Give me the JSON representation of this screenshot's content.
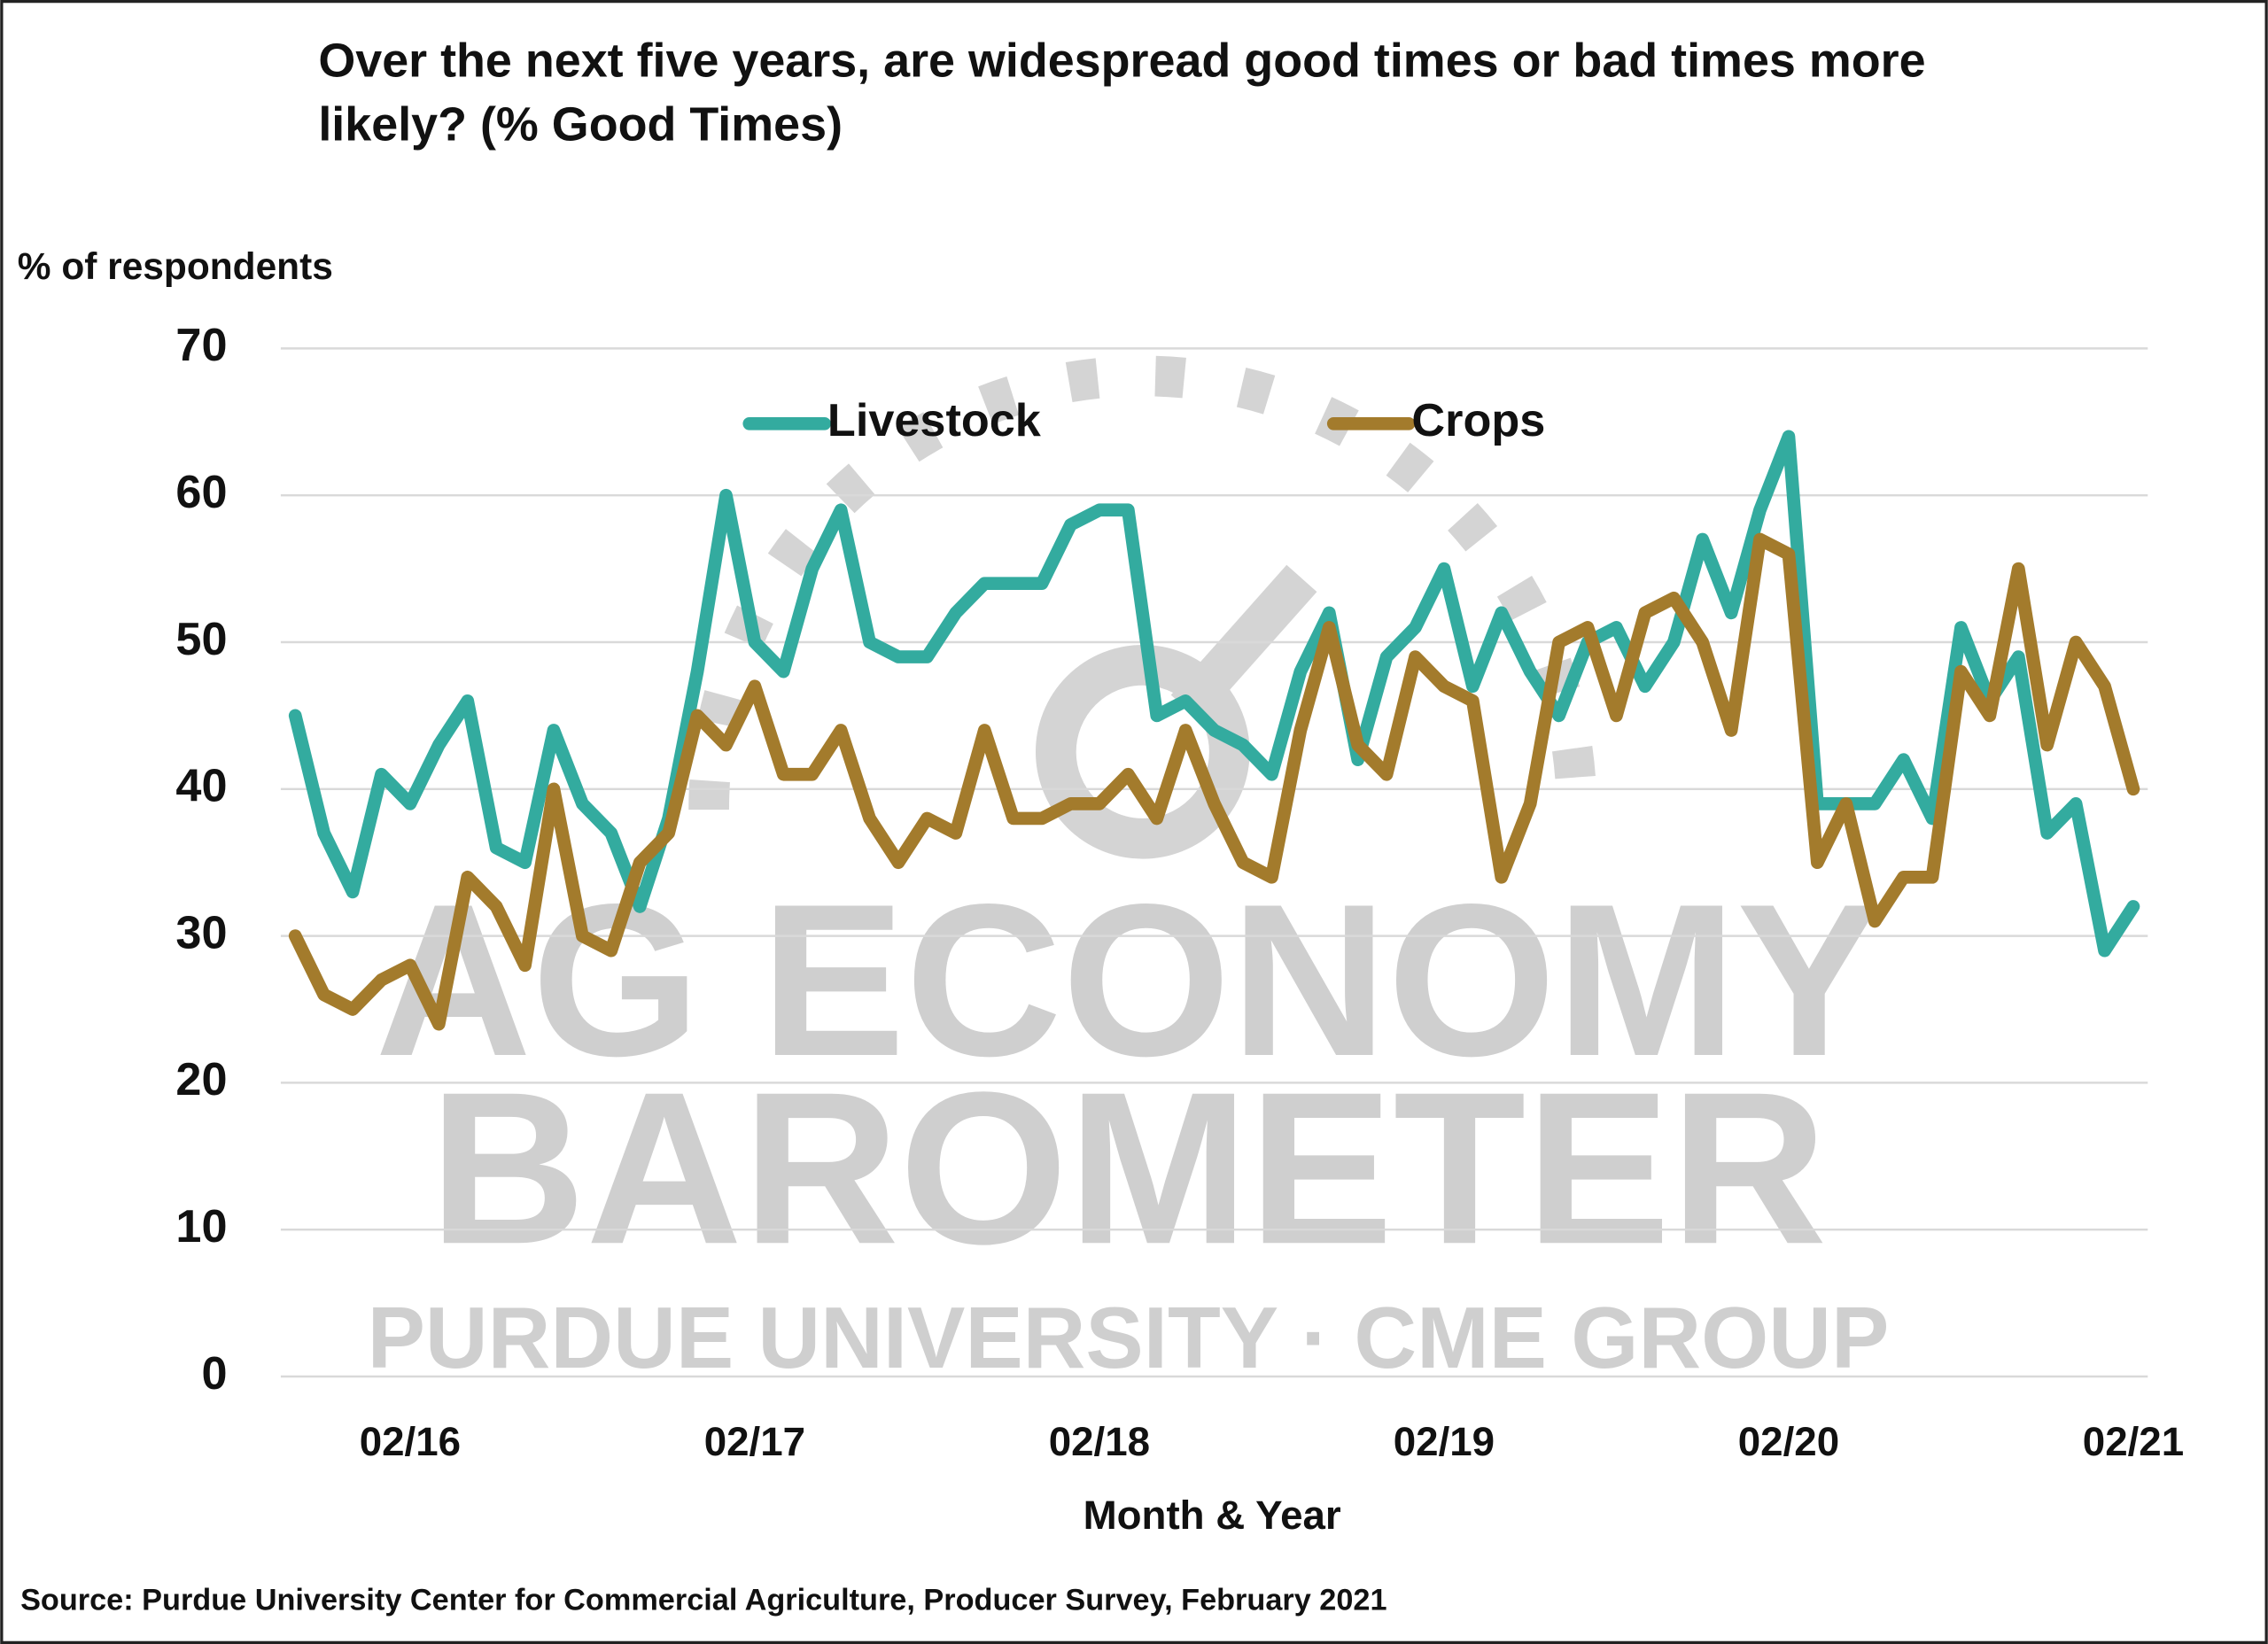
{
  "chart_data": {
    "type": "line",
    "title": "Over the next five years, are widespread good times or bad times more likely? (% Good Times)",
    "y_label": "% of respondents",
    "x_label": "Month & Year",
    "source": "Source: Purdue University Center for Commercial Agriculture, Producer Survey, February 2021",
    "watermark": [
      "AG ECONOMY",
      "BAROMETER",
      "PURDUE UNIVERSITY · CME GROUP"
    ],
    "categories": [
      null,
      null,
      null,
      null,
      "02/16",
      null,
      null,
      null,
      null,
      null,
      null,
      null,
      null,
      null,
      null,
      null,
      "02/17",
      null,
      null,
      null,
      null,
      null,
      null,
      null,
      null,
      null,
      null,
      null,
      "02/18",
      null,
      null,
      null,
      null,
      null,
      null,
      null,
      null,
      null,
      null,
      null,
      "02/19",
      null,
      null,
      null,
      null,
      null,
      null,
      null,
      null,
      null,
      null,
      null,
      "02/20",
      null,
      null,
      null,
      null,
      null,
      null,
      null,
      null,
      null,
      null,
      null,
      "02/21"
    ],
    "series": [
      {
        "name": "Livestock",
        "color": "#33ab9f",
        "values": [
          45,
          37,
          33,
          41,
          39,
          43,
          46,
          36,
          35,
          44,
          39,
          37,
          32,
          38,
          48,
          60,
          50,
          48,
          55,
          59,
          50,
          49,
          49,
          52,
          54,
          54,
          54,
          58,
          59,
          59,
          45,
          46,
          44,
          43,
          41,
          48,
          52,
          42,
          49,
          51,
          55,
          47,
          52,
          48,
          45,
          50,
          51,
          47,
          50,
          57,
          52,
          59,
          64,
          39,
          39,
          39,
          42,
          38,
          51,
          46,
          49,
          37,
          39,
          29,
          32
        ]
      },
      {
        "name": "Crops",
        "color": "#a37b2c",
        "values": [
          30,
          26,
          25,
          27,
          28,
          24,
          34,
          32,
          28,
          40,
          30,
          29,
          35,
          37,
          45,
          43,
          47,
          41,
          41,
          44,
          38,
          35,
          38,
          37,
          44,
          38,
          38,
          39,
          39,
          41,
          38,
          44,
          39,
          35,
          34,
          44,
          51,
          43,
          41,
          49,
          47,
          46,
          34,
          39,
          50,
          51,
          45,
          52,
          53,
          50,
          44,
          57,
          56,
          35,
          39,
          31,
          34,
          34,
          48,
          45,
          55,
          43,
          50,
          47,
          40
        ]
      }
    ],
    "ylim": [
      0,
      70
    ],
    "yticks": [
      0,
      10,
      20,
      30,
      40,
      50,
      60,
      70
    ],
    "grid": true,
    "legend": "top"
  }
}
